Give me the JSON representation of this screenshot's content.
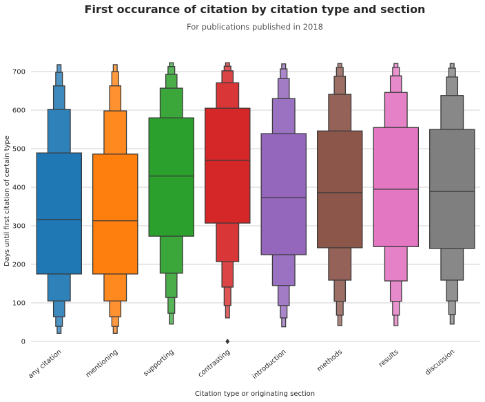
{
  "chart_data": {
    "type": "boxen",
    "title": "First occurance of citation by citation type and section",
    "subtitle": "For publications published in 2018",
    "x_label": "Citation type or originating section",
    "y_label": "Days until first citation of certain type",
    "categories": [
      "any citation",
      "mentioning",
      "supporting",
      "contrasting",
      "introduction",
      "methods",
      "results",
      "discussion"
    ],
    "boxes": [
      {
        "color": "#1f77b4",
        "median": 316,
        "levels": [
          [
            175,
            489
          ],
          [
            105,
            602
          ],
          [
            64,
            663
          ],
          [
            39,
            698
          ],
          [
            21,
            718
          ]
        ]
      },
      {
        "color": "#ff7f0e",
        "median": 313,
        "levels": [
          [
            175,
            486
          ],
          [
            105,
            598
          ],
          [
            64,
            663
          ],
          [
            39,
            700
          ],
          [
            21,
            718
          ]
        ]
      },
      {
        "color": "#2ca02c",
        "median": 429,
        "levels": [
          [
            273,
            580
          ],
          [
            177,
            657
          ],
          [
            114,
            693
          ],
          [
            73,
            713
          ],
          [
            45,
            723
          ]
        ]
      },
      {
        "color": "#d62728",
        "median": 470,
        "levels": [
          [
            307,
            605
          ],
          [
            207,
            671
          ],
          [
            141,
            702
          ],
          [
            93,
            714
          ],
          [
            61,
            723
          ]
        ]
      },
      {
        "color": "#9467bd",
        "median": 373,
        "levels": [
          [
            225,
            539
          ],
          [
            145,
            630
          ],
          [
            93,
            682
          ],
          [
            61,
            707
          ],
          [
            38,
            720
          ]
        ]
      },
      {
        "color": "#8c564b",
        "median": 386,
        "levels": [
          [
            243,
            546
          ],
          [
            159,
            641
          ],
          [
            104,
            688
          ],
          [
            68,
            711
          ],
          [
            41,
            721
          ]
        ]
      },
      {
        "color": "#e377c2",
        "median": 395,
        "levels": [
          [
            246,
            555
          ],
          [
            157,
            646
          ],
          [
            104,
            689
          ],
          [
            68,
            711
          ],
          [
            41,
            721
          ]
        ]
      },
      {
        "color": "#7f7f7f",
        "median": 389,
        "levels": [
          [
            241,
            550
          ],
          [
            159,
            638
          ],
          [
            105,
            686
          ],
          [
            70,
            709
          ],
          [
            45,
            721
          ]
        ]
      }
    ],
    "outliers": [
      {
        "category": 3,
        "value": 0
      }
    ],
    "ylim": [
      0,
      730
    ],
    "yticks": [
      0,
      100,
      200,
      300,
      400,
      500,
      600,
      700
    ],
    "grid": true
  }
}
